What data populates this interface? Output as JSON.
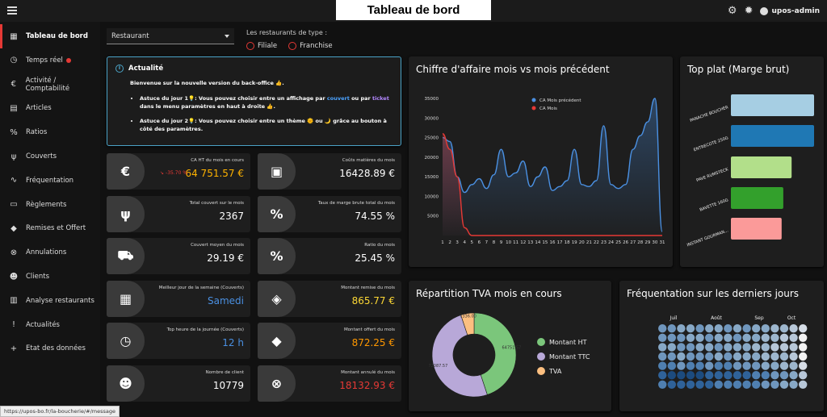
{
  "app_title": "Tableau de bord",
  "user_name": "upos-admin",
  "status_url": "https://upos-bo.fr/la-boucherie/#/message",
  "sidebar": {
    "items": [
      {
        "label": "Tableau de bord",
        "icon": "dashboard-icon",
        "glyph": "▦"
      },
      {
        "label": "Temps réel",
        "icon": "clock-icon",
        "glyph": "◷"
      },
      {
        "label": "Activité / Comptabilité",
        "icon": "euro-icon",
        "glyph": "€"
      },
      {
        "label": "Articles",
        "icon": "articles-icon",
        "glyph": "▤"
      },
      {
        "label": "Ratios",
        "icon": "percent-icon",
        "glyph": "%"
      },
      {
        "label": "Couverts",
        "icon": "cutlery-icon",
        "glyph": "ψ"
      },
      {
        "label": "Fréquentation",
        "icon": "trend-icon",
        "glyph": "∿"
      },
      {
        "label": "Règlements",
        "icon": "payment-icon",
        "glyph": "▭"
      },
      {
        "label": "Remises et Offert",
        "icon": "tag-icon",
        "glyph": "◆"
      },
      {
        "label": "Annulations",
        "icon": "cancel-icon",
        "glyph": "⊗"
      },
      {
        "label": "Clients",
        "icon": "people-icon",
        "glyph": "☻"
      },
      {
        "label": "Analyse restaurants",
        "icon": "analysis-icon",
        "glyph": "▥"
      },
      {
        "label": "Actualités",
        "icon": "news-icon",
        "glyph": "!"
      },
      {
        "label": "Etat des données",
        "icon": "plus-box-icon",
        "glyph": "+"
      }
    ]
  },
  "filters": {
    "select_value": "Restaurant",
    "type_label": "Les restaurants de type :",
    "radio_options": [
      "Filiale",
      "Franchise"
    ]
  },
  "news": {
    "title": "Actualité",
    "intro": "Bienvenue sur la nouvelle version du back-office 👍.",
    "tip1_a": "Astuce du jour 1💡: Vous pouvez choisir entre un affichage par ",
    "tip1_link1": "couvert",
    "tip1_b": " ou par ",
    "tip1_link2": "ticket",
    "tip1_c": " dans le menu paramètres en haut à droite 👍.",
    "tip2": "Astuce du jour 2💡: Vous pouvez choisir entre un thème 🌞 ou 🌙 grâce au bouton à côté des paramètres."
  },
  "kpis": [
    {
      "label": "CA HT du mois en cours",
      "value": "64 751.57 €",
      "color": "#ffb300",
      "icon": "euro-icon",
      "glyph": "€",
      "trend": "-35.70 %"
    },
    {
      "label": "Coûts matières du mois",
      "value": "16428.89 €",
      "color": "#ffffff",
      "icon": "archive-icon",
      "glyph": "▣"
    },
    {
      "label": "Total couvert sur le mois",
      "value": "2367",
      "color": "#ffffff",
      "icon": "cutlery-icon",
      "glyph": "ψ"
    },
    {
      "label": "Taux de marge brute total du mois",
      "value": "74.55 %",
      "color": "#ffffff",
      "icon": "percent-icon",
      "glyph": "%"
    },
    {
      "label": "Couvert moyen du mois",
      "value": "29.19 €",
      "color": "#ffffff",
      "icon": "cart-icon",
      "glyph": "⛟"
    },
    {
      "label": "Ratio du mois",
      "value": "25.45 %",
      "color": "#ffffff",
      "icon": "percent-icon",
      "glyph": "%"
    },
    {
      "label": "Meilleur jour de la semaine (Couverts)",
      "value": "Samedi",
      "color": "#4a90e2",
      "icon": "calendar-icon",
      "glyph": "▦"
    },
    {
      "label": "Montant remise du mois",
      "value": "865.77 €",
      "color": "#fdd835",
      "icon": "tags-icon",
      "glyph": "◈"
    },
    {
      "label": "Top heure de la journée (Couverts)",
      "value": "12 h",
      "color": "#4a90e2",
      "icon": "clock-icon",
      "glyph": "◷"
    },
    {
      "label": "Montant offert du mois",
      "value": "872.25 €",
      "color": "#ff9800",
      "icon": "tag-icon",
      "glyph": "◆"
    },
    {
      "label": "Nombre de client",
      "value": "10779",
      "color": "#ffffff",
      "icon": "people-icon",
      "glyph": "☻"
    },
    {
      "label": "Montant annulé du mois",
      "value": "18132.93 €",
      "color": "#e53935",
      "icon": "cancel-icon",
      "glyph": "⊗"
    }
  ],
  "panels": {
    "ca_title": "Chiffre d'affaire mois vs mois précédent",
    "top_title": "Top plat (Marge brut)",
    "tva_title": "Répartition TVA mois en cours",
    "freq_title": "Fréquentation sur les derniers jours"
  },
  "chart_data": [
    {
      "type": "line",
      "title": "Chiffre d'affaire mois vs mois précédent",
      "x": [
        1,
        2,
        3,
        4,
        5,
        6,
        7,
        8,
        9,
        10,
        11,
        12,
        13,
        14,
        15,
        16,
        17,
        18,
        19,
        20,
        21,
        22,
        23,
        24,
        25,
        26,
        27,
        28,
        29,
        30,
        31
      ],
      "ylim": [
        0,
        35000
      ],
      "yticks": [
        5000,
        10000,
        15000,
        20000,
        25000,
        30000,
        35000
      ],
      "series": [
        {
          "name": "CA Mois précédent",
          "color": "#4a90e2",
          "values": [
            25000,
            24000,
            15000,
            11000,
            13000,
            14500,
            12000,
            15500,
            22000,
            15000,
            16000,
            19000,
            12500,
            15000,
            17500,
            11500,
            12500,
            14000,
            22000,
            13000,
            12500,
            14000,
            28000,
            13000,
            12000,
            13000,
            22000,
            25500,
            29000,
            35000,
            1000
          ]
        },
        {
          "name": "CA Mois",
          "color": "#e53935",
          "values": [
            26000,
            22000,
            15000,
            2000,
            0,
            0,
            0,
            0,
            0,
            0,
            0,
            0,
            0,
            0,
            0,
            0,
            0,
            0,
            0,
            0,
            0,
            0,
            0,
            0,
            0,
            0,
            0,
            0,
            0,
            0,
            0
          ]
        }
      ]
    },
    {
      "type": "bar",
      "title": "Top plat (Marge brut)",
      "categories": [
        "PANACHE BOUCHER",
        "ENTRECOTE 250G",
        "PAVE RUMSTECK",
        "BAVETTE 160G",
        "INSTANT GOURMAN..."
      ],
      "values": [
        100,
        100,
        73,
        63,
        61
      ],
      "colors": [
        "#a6cee3",
        "#1f78b4",
        "#b2df8a",
        "#33a02c",
        "#fb9a99"
      ]
    },
    {
      "type": "pie",
      "title": "Répartition TVA mois en cours",
      "slices": [
        {
          "name": "Montant HT",
          "value": 64751.57,
          "color": "#7bc67b"
        },
        {
          "name": "Montant TTC",
          "value": 72087.57,
          "color": "#b8a8d8"
        },
        {
          "name": "TVA",
          "value": 7336.0,
          "color": "#fcbf80"
        }
      ],
      "labels": [
        "64751.57",
        "72087.57",
        "7336.00"
      ]
    },
    {
      "type": "heatmap",
      "title": "Fréquentation sur les derniers jours",
      "months": [
        "Juil",
        "Août",
        "Sep",
        "Oct"
      ],
      "rows": 7,
      "cols": 16,
      "values": [
        [
          5,
          5,
          4,
          4,
          5,
          4,
          4,
          5,
          4,
          5,
          4,
          4,
          3,
          3,
          2,
          1
        ],
        [
          5,
          5,
          5,
          4,
          4,
          5,
          4,
          4,
          5,
          4,
          4,
          3,
          3,
          2,
          2,
          0
        ],
        [
          4,
          4,
          5,
          5,
          4,
          4,
          5,
          4,
          4,
          4,
          3,
          3,
          2,
          2,
          2,
          0
        ],
        [
          5,
          5,
          4,
          5,
          5,
          5,
          4,
          5,
          4,
          4,
          4,
          3,
          3,
          3,
          2,
          0
        ],
        [
          6,
          6,
          5,
          6,
          6,
          5,
          6,
          6,
          5,
          5,
          5,
          4,
          4,
          3,
          3,
          1
        ],
        [
          7,
          8,
          8,
          8,
          8,
          7,
          7,
          7,
          7,
          7,
          6,
          6,
          5,
          5,
          4,
          2
        ],
        [
          6,
          7,
          7,
          7,
          7,
          7,
          6,
          6,
          6,
          6,
          6,
          5,
          5,
          4,
          4,
          2
        ]
      ]
    }
  ]
}
